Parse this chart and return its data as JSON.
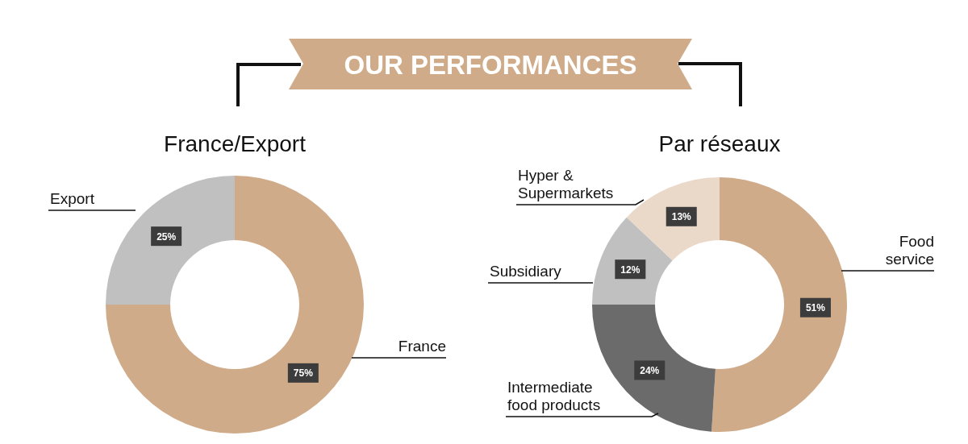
{
  "chart_data": [
    {
      "type": "other",
      "title": "OUR PERFORMANCES"
    },
    {
      "type": "donut",
      "title": "France/Export",
      "categories": [
        "France",
        "Export"
      ],
      "values": [
        75,
        25
      ],
      "colors": [
        "#cfab89",
        "#c0c0c0"
      ],
      "value_labels": [
        "75%",
        "25%"
      ]
    },
    {
      "type": "donut",
      "title": "Par réseaux",
      "categories": [
        "Food service",
        "Intermediate food products",
        "Subsidiary",
        "Hyper & Supermarkets"
      ],
      "values": [
        51,
        24,
        12,
        13
      ],
      "colors": [
        "#cfab89",
        "#6b6b6b",
        "#c0c0c0",
        "#ead9c9"
      ],
      "value_labels": [
        "51%",
        "24%",
        "12%",
        "13%"
      ]
    }
  ]
}
